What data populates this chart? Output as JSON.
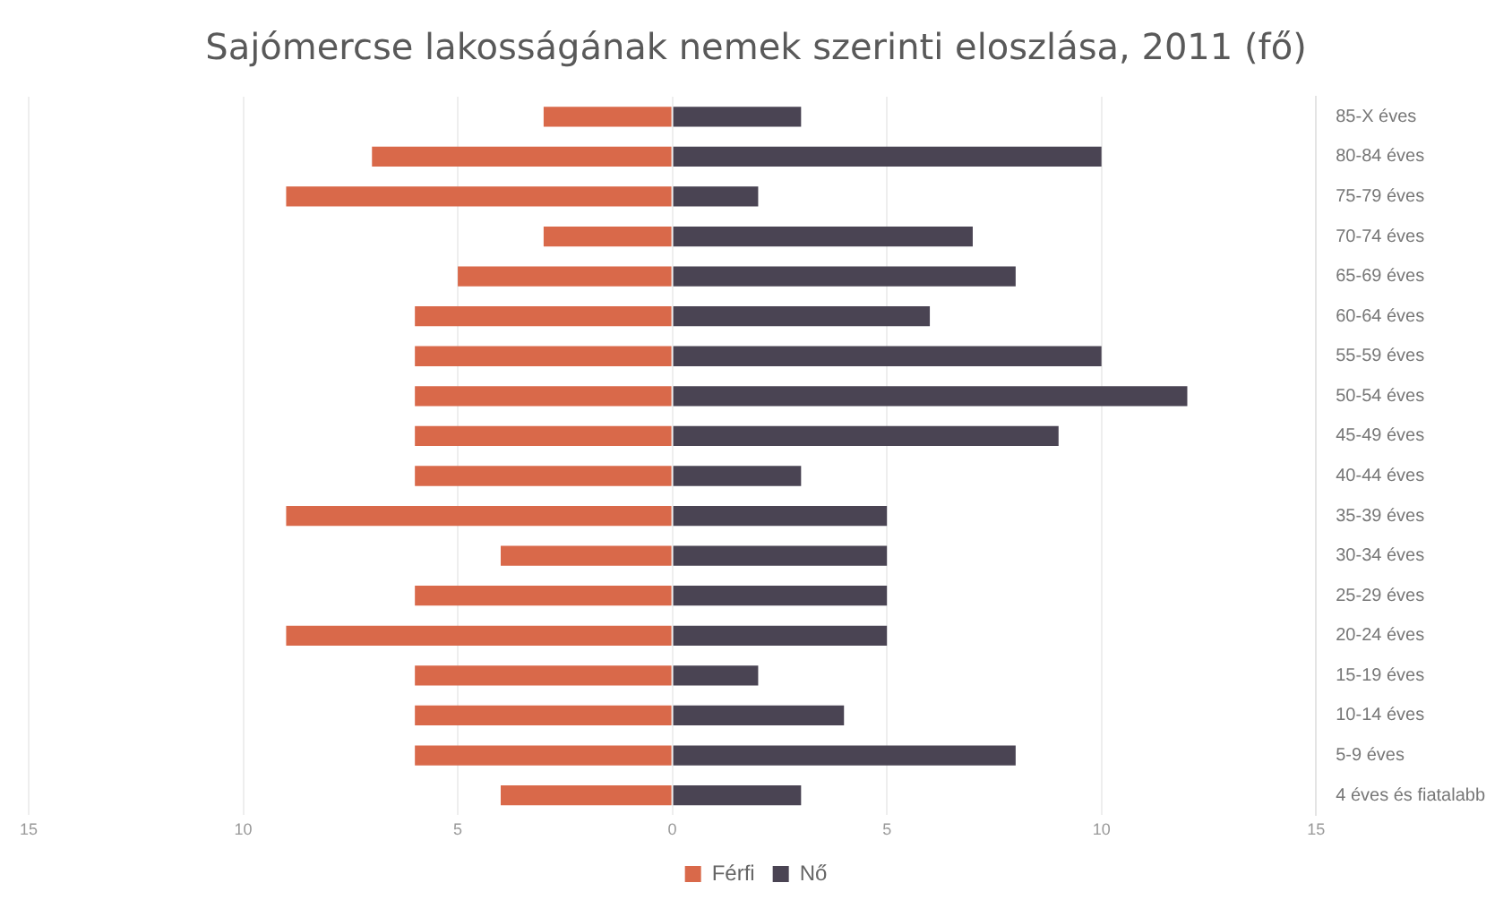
{
  "chart_data": {
    "type": "bar",
    "orientation": "horizontal",
    "stacked": true,
    "title": "Sajómercse lakosságának nemek szerinti eloszlása, 2011 (fő)",
    "categories": [
      "85-X éves",
      "80-84 éves",
      "75-79 éves",
      "70-74 éves",
      "65-69 éves",
      "60-64 éves",
      "55-59 éves",
      "50-54 éves",
      "45-49 éves",
      "40-44 éves",
      "35-39 éves",
      "30-34 éves",
      "25-29 éves",
      "20-24 éves",
      "15-19 éves",
      "10-14 éves",
      "5-9 éves",
      "4 éves és fiatalabb"
    ],
    "series": [
      {
        "name": "Férfi",
        "color": "#d9694a",
        "values": [
          -3,
          -7,
          -9,
          -3,
          -5,
          -6,
          -6,
          -6,
          -6,
          -6,
          -9,
          -4,
          -6,
          -9,
          -6,
          -6,
          -6,
          -4
        ]
      },
      {
        "name": "Nő",
        "color": "#4a4453",
        "values": [
          3,
          10,
          2,
          7,
          8,
          6,
          10,
          12,
          9,
          3,
          5,
          5,
          5,
          5,
          2,
          4,
          8,
          3
        ]
      }
    ],
    "xlim": [
      -15,
      15
    ],
    "xticks": [
      {
        "value": -15,
        "label": "15"
      },
      {
        "value": -10,
        "label": "10"
      },
      {
        "value": -5,
        "label": "5"
      },
      0,
      5,
      10,
      15
    ],
    "grid": "x",
    "legend": "bottom"
  }
}
